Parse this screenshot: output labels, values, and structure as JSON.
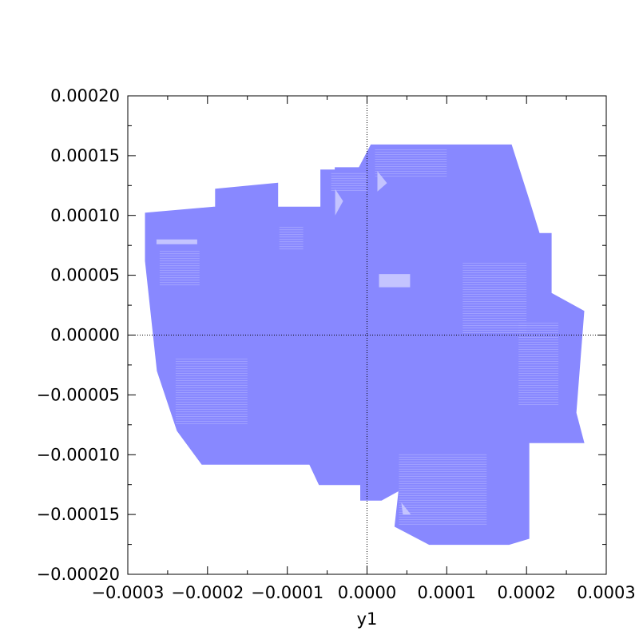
{
  "chart_data": {
    "type": "area",
    "title": "",
    "xlabel": "y1",
    "ylabel": "",
    "xlim": [
      -0.0003,
      0.0003
    ],
    "ylim": [
      -0.0002,
      0.0002
    ],
    "x_ticks": [
      {
        "value": -0.0003,
        "label": "−0.0003"
      },
      {
        "value": -0.0002,
        "label": "−0.0002"
      },
      {
        "value": -0.0001,
        "label": "−0.0001"
      },
      {
        "value": 0.0,
        "label": "0.0000"
      },
      {
        "value": 0.0001,
        "label": "0.0001"
      },
      {
        "value": 0.0002,
        "label": "0.0002"
      },
      {
        "value": 0.0003,
        "label": "0.0003"
      }
    ],
    "y_ticks": [
      {
        "value": 0.0002,
        "label": "0.00020"
      },
      {
        "value": 0.00015,
        "label": "0.00015"
      },
      {
        "value": 0.0001,
        "label": "0.00010"
      },
      {
        "value": 5e-05,
        "label": "0.00005"
      },
      {
        "value": 0.0,
        "label": "0.00000"
      },
      {
        "value": -5e-05,
        "label": "−0.00005"
      },
      {
        "value": -0.0001,
        "label": "−0.00010"
      },
      {
        "value": -0.00015,
        "label": "−0.00015"
      },
      {
        "value": -0.0002,
        "label": "−0.00020"
      }
    ],
    "zero_lines": true,
    "grid": false,
    "region_color": "#8888ff",
    "highlight_color": "#c4c4ff",
    "regions": [
      {
        "points": [
          [
            -0.000278,
            0.000102
          ],
          [
            -0.000192,
            0.000107
          ],
          [
            -5.8e-05,
            0.000107
          ],
          [
            -5.8e-05,
            0.000138
          ],
          [
            -1.15e-05,
            0.000138
          ],
          [
            5e-06,
            0.000159
          ],
          [
            0.000181,
            0.000159
          ],
          [
            0.000203,
            0.000113
          ],
          [
            0.000216,
            8.5e-05
          ],
          [
            0.000231,
            8.5e-05
          ],
          [
            0.000231,
            3.5e-05
          ],
          [
            0.000272,
            2e-05
          ],
          [
            0.000262,
            -6.5e-05
          ],
          [
            0.000272,
            -9e-05
          ],
          [
            0.000203,
            -9e-05
          ],
          [
            0.000203,
            -0.00017
          ],
          [
            0.000178,
            -0.000175
          ],
          [
            7.8e-05,
            -0.000175
          ],
          [
            3.5e-05,
            -0.00016
          ],
          [
            4e-05,
            -0.00013
          ],
          [
            1.8e-05,
            -0.000138
          ],
          [
            -8e-06,
            -0.000138
          ],
          [
            -8e-06,
            -0.000125
          ],
          [
            -6e-05,
            -0.000125
          ],
          [
            -7.2e-05,
            -0.000108
          ],
          [
            -0.000207,
            -0.000108
          ],
          [
            -0.000238,
            -8e-05
          ],
          [
            -0.000263,
            -3e-05
          ],
          [
            -0.000278,
            6.2e-05
          ]
        ]
      },
      {
        "points": [
          [
            -0.00019,
            0.000122
          ],
          [
            -0.000112,
            0.000127
          ],
          [
            -0.000112,
            0.0001
          ],
          [
            -0.00019,
            0.0001
          ]
        ]
      },
      {
        "points": [
          [
            -4e-05,
            0.00014
          ],
          [
            -5e-06,
            0.00014
          ],
          [
            -5e-06,
            0.000125
          ],
          [
            -4e-05,
            0.000125
          ]
        ]
      }
    ],
    "highlights": [
      {
        "points": [
          [
            1.5e-05,
            5.1e-05
          ],
          [
            5.4e-05,
            5.1e-05
          ],
          [
            5.4e-05,
            4e-05
          ],
          [
            1.5e-05,
            4e-05
          ]
        ]
      },
      {
        "points": [
          [
            -0.000264,
            8e-05
          ],
          [
            -0.000213,
            8e-05
          ],
          [
            -0.000213,
            7.6e-05
          ],
          [
            -0.000264,
            7.6e-05
          ]
        ]
      },
      {
        "points": [
          [
            1.3e-05,
            0.000137
          ],
          [
            2.5e-05,
            0.000127
          ],
          [
            1.3e-05,
            0.00012
          ]
        ]
      },
      {
        "points": [
          [
            -4e-05,
            0.000122
          ],
          [
            -3e-05,
            0.000112
          ],
          [
            -4e-05,
            0.0001
          ]
        ]
      },
      {
        "points": [
          [
            4.3e-05,
            -0.00014
          ],
          [
            5.5e-05,
            -0.00015
          ],
          [
            4.5e-05,
            -0.00015
          ]
        ]
      }
    ]
  }
}
